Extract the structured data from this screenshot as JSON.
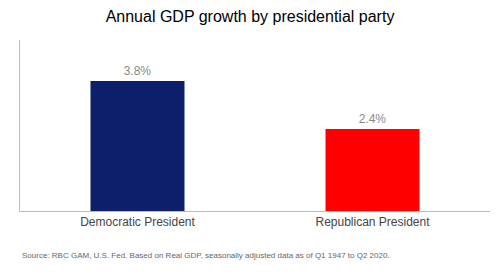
{
  "chart_data": {
    "type": "bar",
    "title": "Annual GDP growth by presidential party",
    "categories": [
      "Democratic President",
      "Republican President"
    ],
    "values": [
      3.8,
      2.4
    ],
    "value_labels": [
      "3.8%",
      "2.4%"
    ],
    "data_labels": true,
    "colors": [
      "#0d1f6b",
      "#ff0000"
    ],
    "ylim": [
      0,
      5.0
    ],
    "tick_labels": "x",
    "grid": false,
    "annotations": [
      "Source: RBC GAM, U.S. Fed. Based on Real GDP, seasonally adjusted data as of Q1 1947 to Q2 2020."
    ]
  }
}
